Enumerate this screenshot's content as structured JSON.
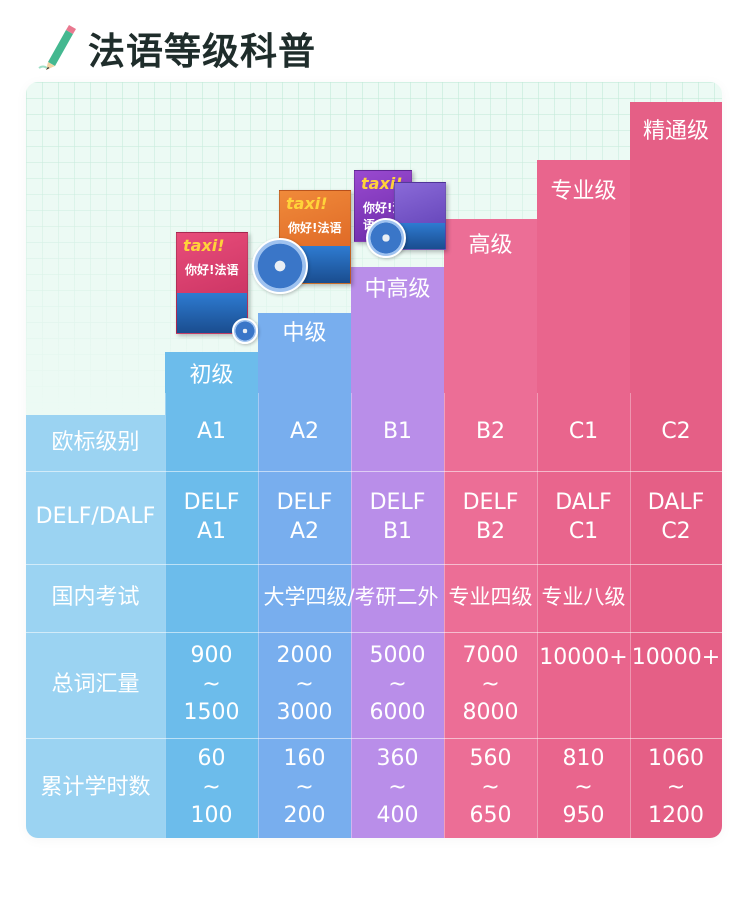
{
  "header": {
    "title": "法语等级科普",
    "icon": "pencil-icon"
  },
  "colors": {
    "label_bg": "#9bd3f2",
    "a1": "#6cbceb",
    "a2": "#78aeee",
    "b1": "#b98ee9",
    "b2": "#ec6e96",
    "c1": "#e9658d",
    "c2": "#e55f86",
    "card_bg": "#ecfaf4"
  },
  "levels": [
    {
      "name": "初级",
      "cefr": "A1",
      "delf": [
        "DELF",
        "A1"
      ],
      "vocab": [
        "900",
        "~",
        "1500"
      ],
      "hours": [
        "60",
        "~",
        "100"
      ]
    },
    {
      "name": "中级",
      "cefr": "A2",
      "delf": [
        "DELF",
        "A2"
      ],
      "vocab": [
        "2000",
        "~",
        "3000"
      ],
      "hours": [
        "160",
        "~",
        "200"
      ]
    },
    {
      "name": "中高级",
      "cefr": "B1",
      "delf": [
        "DELF",
        "B1"
      ],
      "vocab": [
        "5000",
        "~",
        "6000"
      ],
      "hours": [
        "360",
        "~",
        "400"
      ]
    },
    {
      "name": "高级",
      "cefr": "B2",
      "delf": [
        "DELF",
        "B2"
      ],
      "vocab": [
        "7000",
        "~",
        "8000"
      ],
      "hours": [
        "560",
        "~",
        "650"
      ]
    },
    {
      "name": "专业级",
      "cefr": "C1",
      "delf": [
        "DALF",
        "C1"
      ],
      "vocab": [
        "10000+"
      ],
      "hours": [
        "810",
        "~",
        "950"
      ]
    },
    {
      "name": "精通级",
      "cefr": "C2",
      "delf": [
        "DALF",
        "C2"
      ],
      "vocab": [
        "10000+"
      ],
      "hours": [
        "1060",
        "~",
        "1200"
      ]
    }
  ],
  "row_labels": {
    "cefr": "欧标级别",
    "delf": "DELF/DALF",
    "domestic": "国内考试",
    "vocab": "总词汇量",
    "hours": "累计学时数"
  },
  "domestic_exams": {
    "a2_b1": "大学四级/考研二外",
    "b2": "专业四级",
    "c1": "专业八级"
  },
  "books": {
    "brand": "taxi!",
    "title": "你好!法语"
  }
}
